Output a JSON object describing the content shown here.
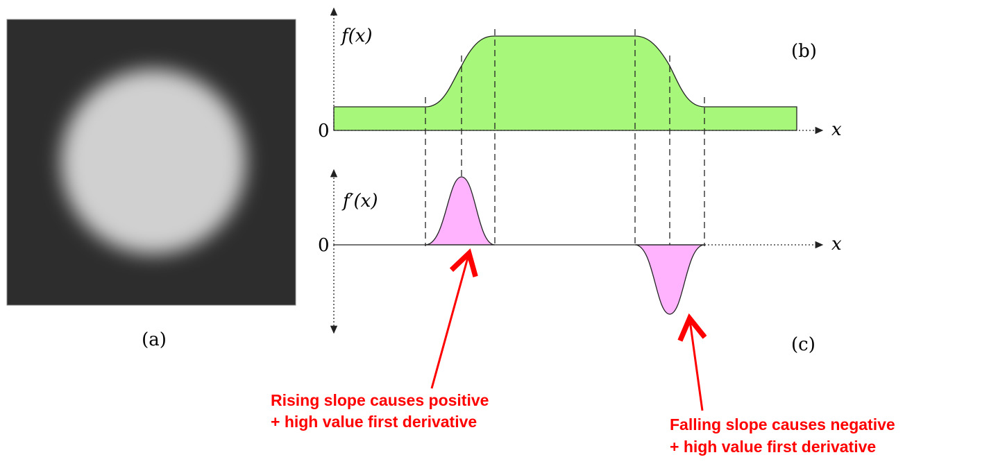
{
  "panels": {
    "a": {
      "label": "(a)"
    },
    "b": {
      "label": "(b)",
      "y_label": "f(x)",
      "zero": "0",
      "x_label": "x"
    },
    "c": {
      "label": "(c)",
      "y_label": "f′(x)",
      "zero": "0",
      "x_label": "x"
    }
  },
  "annotations": [
    {
      "lines": [
        "Rising slope causes positive",
        "+ high value first derivative"
      ]
    },
    {
      "lines": [
        "Falling slope causes negative",
        "+ high value first derivative"
      ]
    }
  ]
}
